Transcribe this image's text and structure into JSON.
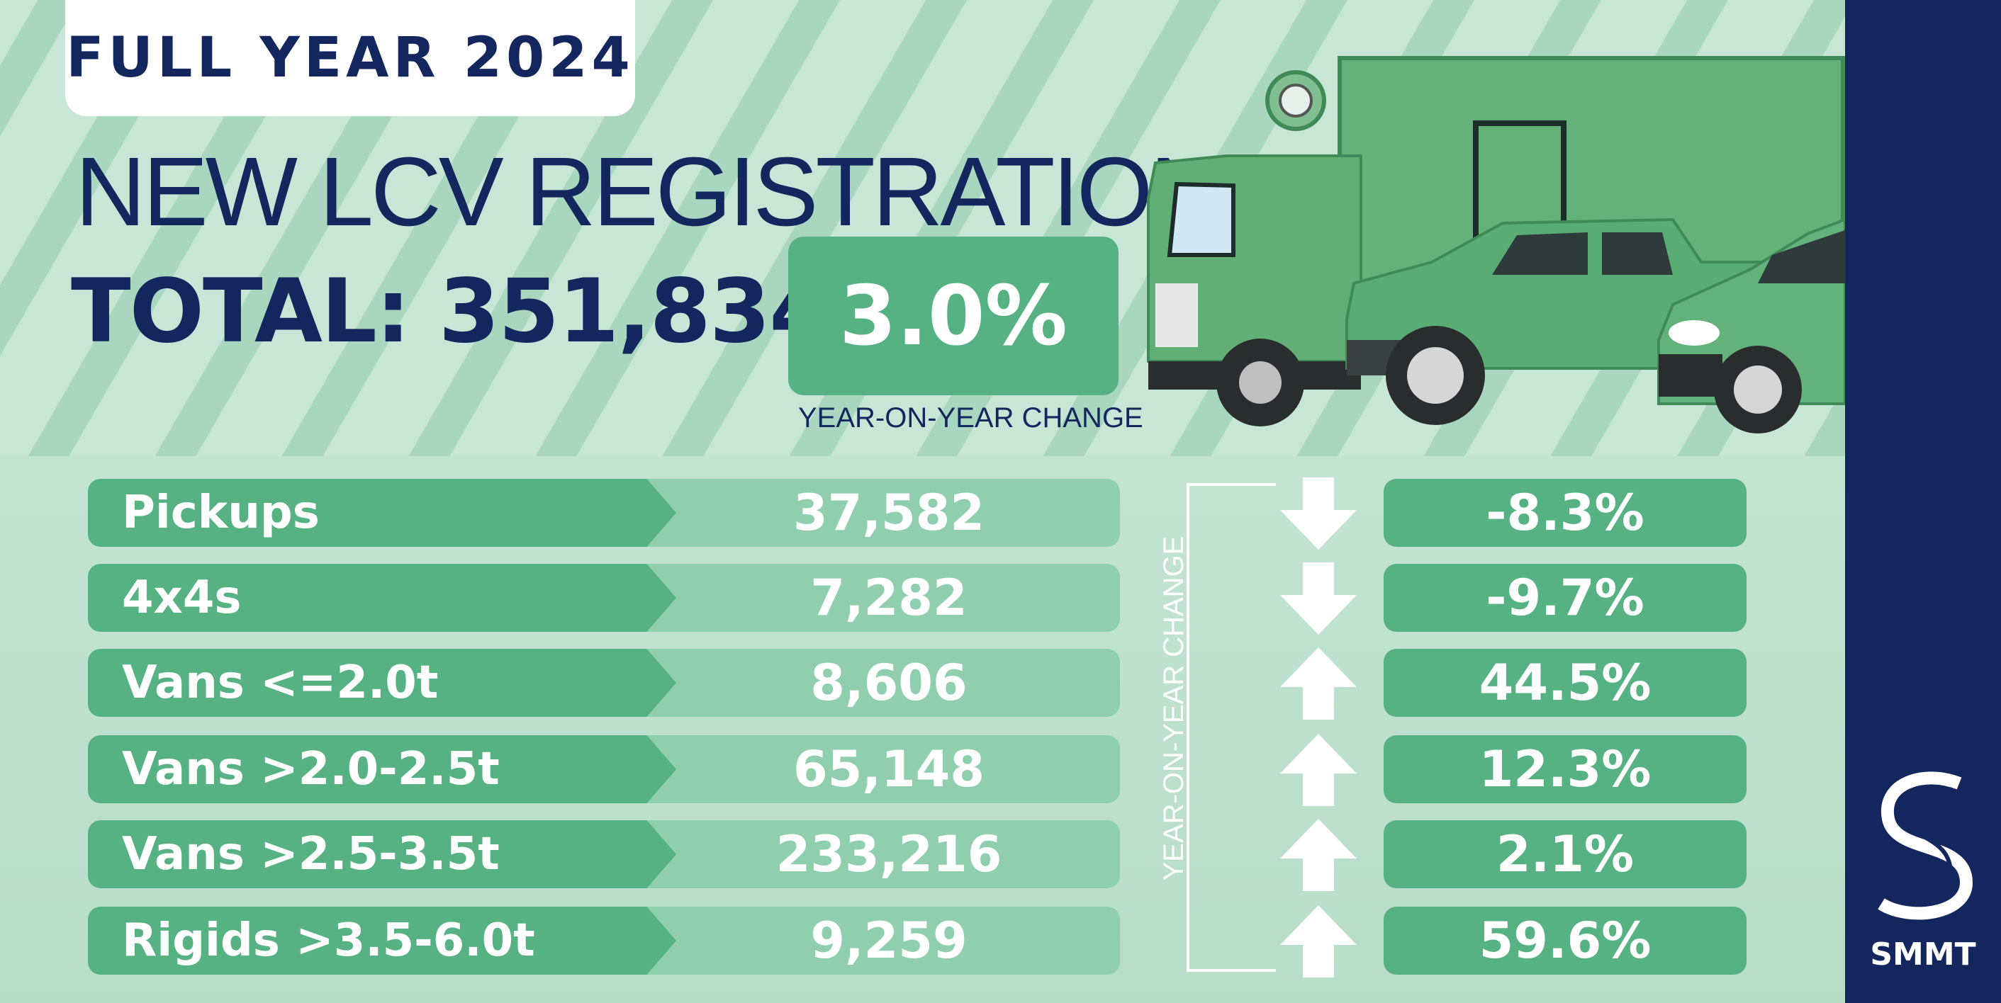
{
  "period_tag": "FULL YEAR 2024",
  "headline": "NEW LCV REGISTRATIONS",
  "total_text": "TOTAL: 351,834",
  "total_change": "3.0%",
  "total_change_caption": "YEAR-ON-YEAR CHANGE",
  "yoy_column_label": "YEAR-ON-YEAR CHANGE",
  "brand": "SMMT",
  "colors": {
    "navy": "#13275e",
    "green": "#57b283",
    "light_green": "#8fcfae"
  },
  "rows": [
    {
      "label": "Pickups",
      "value": "37,582",
      "change": "-8.3%",
      "direction": "down"
    },
    {
      "label": "4x4s",
      "value": "7,282",
      "change": "-9.7%",
      "direction": "down"
    },
    {
      "label": "Vans <=2.0t",
      "value": "8,606",
      "change": "44.5%",
      "direction": "up"
    },
    {
      "label": "Vans >2.0-2.5t",
      "value": "65,148",
      "change": "12.3%",
      "direction": "up"
    },
    {
      "label": "Vans >2.5-3.5t",
      "value": "233,216",
      "change": "2.1%",
      "direction": "up"
    },
    {
      "label": "Rigids >3.5-6.0t",
      "value": "9,259",
      "change": "59.6%",
      "direction": "up"
    }
  ]
}
